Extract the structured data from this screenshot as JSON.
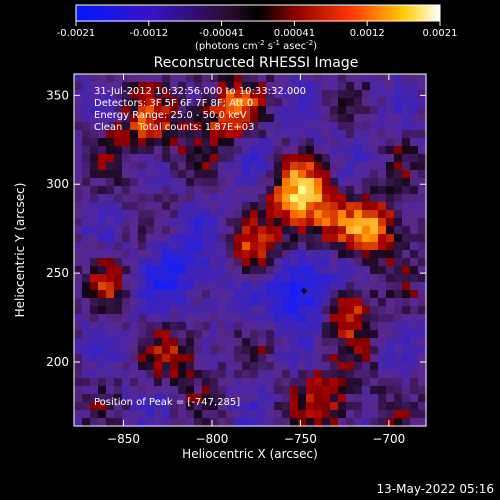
{
  "chart_data": {
    "type": "heatmap",
    "title": "Reconstructed RHESSI Image",
    "xlabel": "Heliocentric X (arcsec)",
    "ylabel": "Heliocentric Y (arcsec)",
    "xlim": [
      -878,
      -679
    ],
    "ylim": [
      164,
      362
    ],
    "x_ticks": [
      -850,
      -800,
      -750,
      -700
    ],
    "y_ticks": [
      200,
      250,
      300,
      350
    ],
    "colorbar": {
      "ticks": [
        "-0.0021",
        "-0.0012",
        "-0.00041",
        "0.00041",
        "0.0012",
        "0.0021"
      ],
      "range": [
        -0.0021,
        0.0021
      ],
      "unit_main": "(photons cm",
      "unit_exp1": "-2",
      "unit_mid": " s",
      "unit_exp2": "-1",
      "unit_mid2": " asec",
      "unit_exp3": "-2",
      "unit_end": ")"
    },
    "annotations": [
      "31-Jul-2012 10:32:56.000 to 10:33:32.000",
      "Detectors: 3F 5F 6F 7F 8F; Att 0",
      "Energy Range: 25.0 - 50.0 keV",
      "Clean     Total counts: 1.87E+03"
    ],
    "peak_label": "Position of Peak = [-747,285]",
    "peak": [
      -747,
      285
    ],
    "min_marker": [
      -748,
      240
    ],
    "date_stamp": "13-May-2022 05:16",
    "colors": {
      "negative": [
        "#000080",
        "#0030ff",
        "#5020a0",
        "#5a2a78"
      ],
      "zero": "#000000",
      "positive": [
        "#800000",
        "#d03000",
        "#ff7a00",
        "#ffd040",
        "#ffffff"
      ]
    }
  }
}
